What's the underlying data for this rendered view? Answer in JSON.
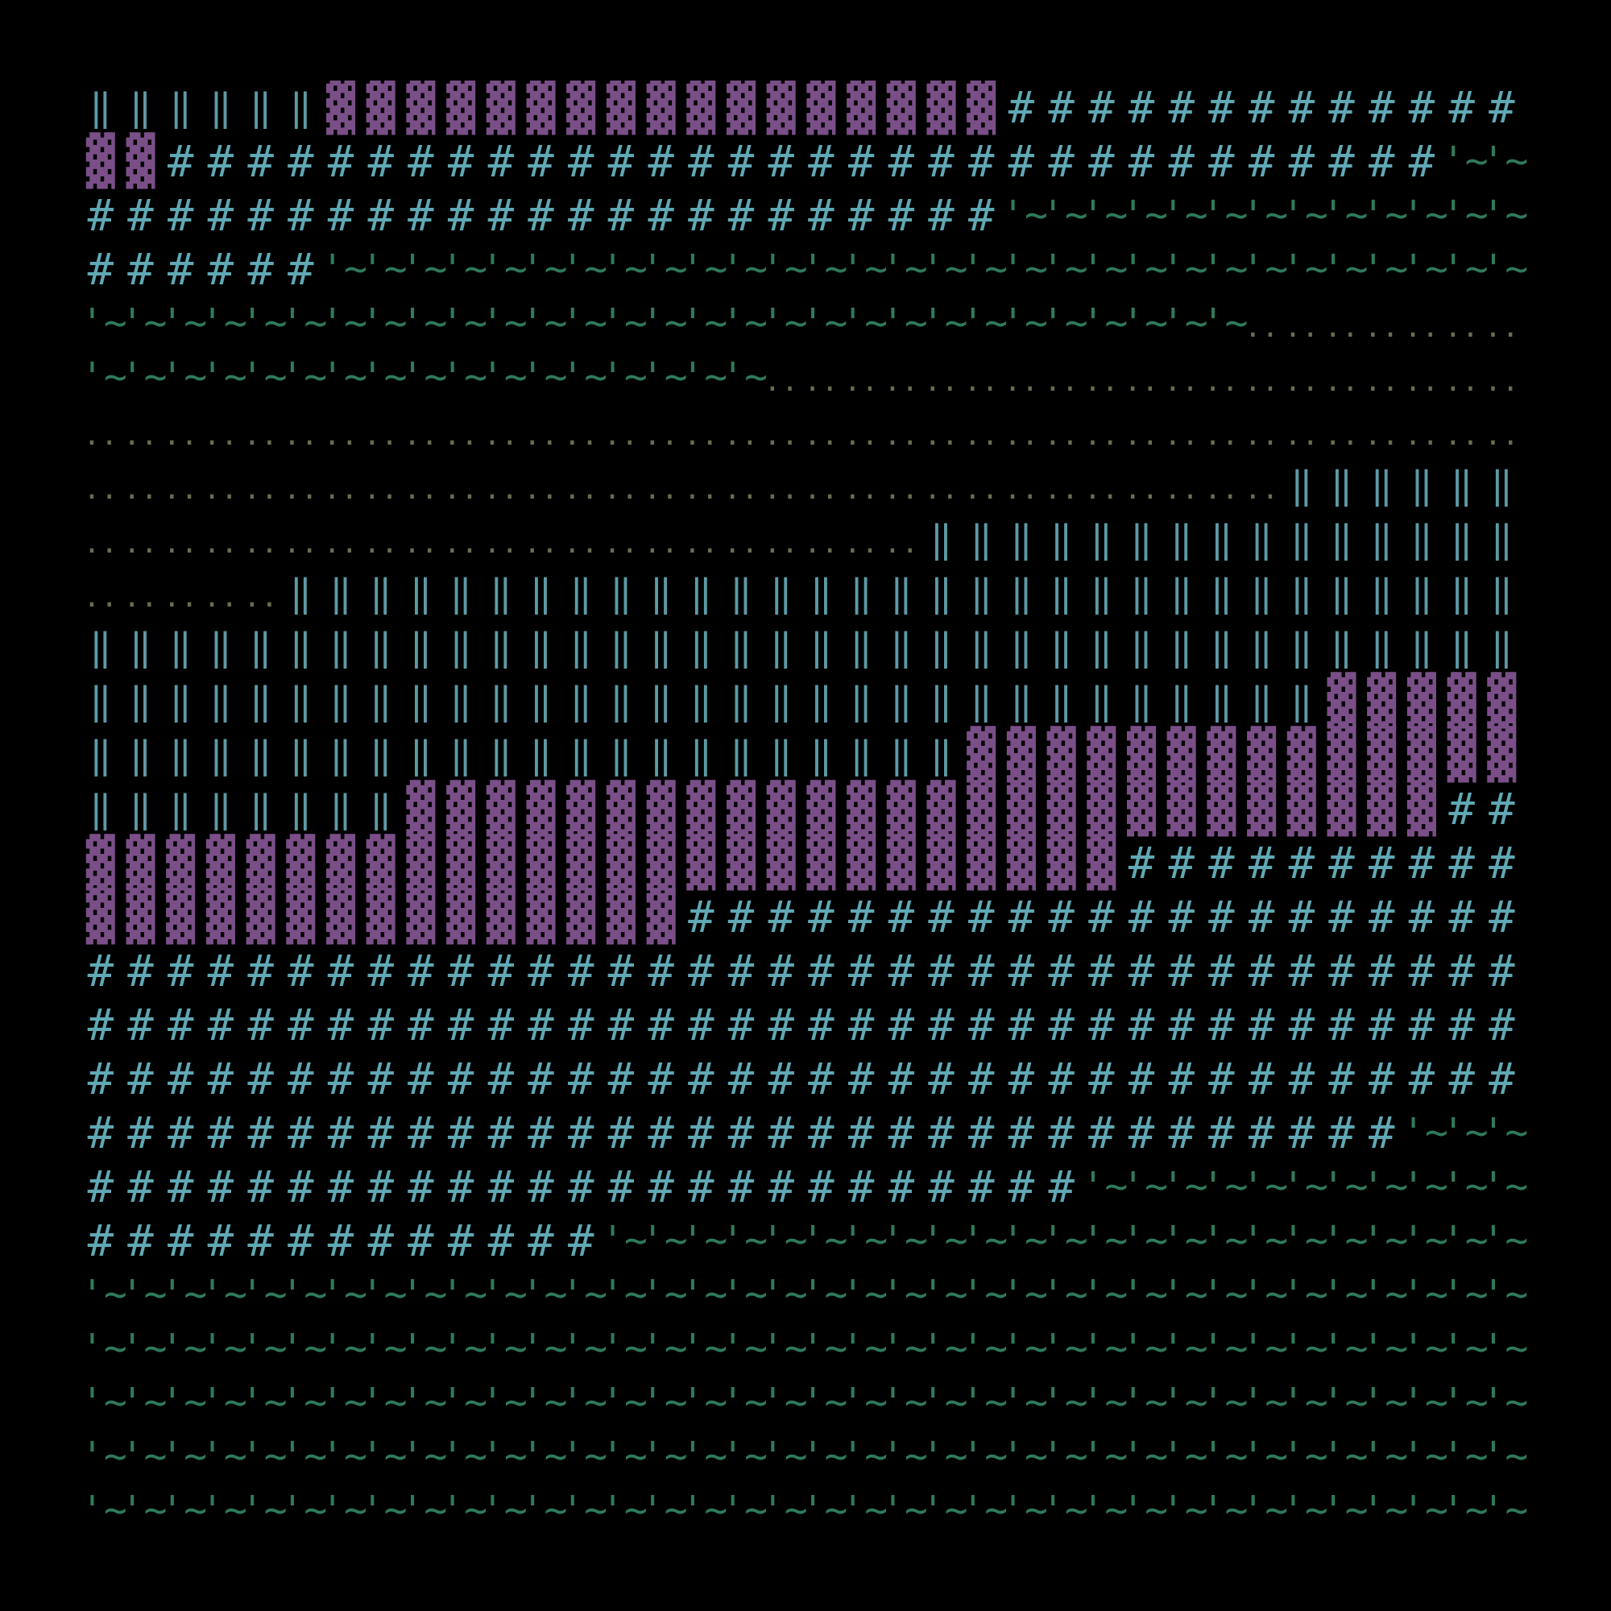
{
  "glyphs": {
    "pillar": "‖",
    "block": "▓",
    "hash": "#",
    "wave": "'~",
    "dots": ".."
  },
  "colors": {
    "background": "#000000",
    "pillar": "#5c9aa6",
    "block": "#7a4f88",
    "hash": "#5fa8b4",
    "wave": "#2f7a5a",
    "dots": "#6b6b50"
  },
  "grid": {
    "columns": 36,
    "rows": 27
  },
  "rows": [
    [
      [
        "pillar",
        6
      ],
      [
        "block",
        17
      ],
      [
        "hash",
        13
      ]
    ],
    [
      [
        "block",
        2
      ],
      [
        "hash",
        32
      ],
      [
        "wave",
        2
      ]
    ],
    [
      [
        "hash",
        23
      ],
      [
        "wave",
        13
      ]
    ],
    [
      [
        "hash",
        6
      ],
      [
        "wave",
        30
      ]
    ],
    [
      [
        "wave",
        29
      ],
      [
        "dots",
        7
      ]
    ],
    [
      [
        "wave",
        17
      ],
      [
        "dots",
        19
      ]
    ],
    [
      [
        "dots",
        36
      ]
    ],
    [
      [
        "dots",
        30
      ],
      [
        "pillar",
        6
      ]
    ],
    [
      [
        "dots",
        21
      ],
      [
        "pillar",
        15
      ]
    ],
    [
      [
        "dots",
        5
      ],
      [
        "pillar",
        31
      ]
    ],
    [
      [
        "pillar",
        36
      ]
    ],
    [
      [
        "pillar",
        31
      ],
      [
        "block",
        5
      ]
    ],
    [
      [
        "pillar",
        22
      ],
      [
        "block",
        14
      ]
    ],
    [
      [
        "pillar",
        8
      ],
      [
        "block",
        26
      ],
      [
        "hash",
        2
      ]
    ],
    [
      [
        "block",
        26
      ],
      [
        "hash",
        10
      ]
    ],
    [
      [
        "block",
        15
      ],
      [
        "hash",
        21
      ]
    ],
    [
      [
        "hash",
        36
      ]
    ],
    [
      [
        "hash",
        36
      ]
    ],
    [
      [
        "hash",
        36
      ]
    ],
    [
      [
        "hash",
        33
      ],
      [
        "wave",
        3
      ]
    ],
    [
      [
        "hash",
        25
      ],
      [
        "wave",
        11
      ]
    ],
    [
      [
        "hash",
        13
      ],
      [
        "wave",
        23
      ]
    ],
    [
      [
        "wave",
        36
      ]
    ],
    [
      [
        "wave",
        36
      ]
    ],
    [
      [
        "wave",
        36
      ]
    ],
    [
      [
        "wave",
        36
      ]
    ],
    [
      [
        "wave",
        36
      ]
    ]
  ]
}
